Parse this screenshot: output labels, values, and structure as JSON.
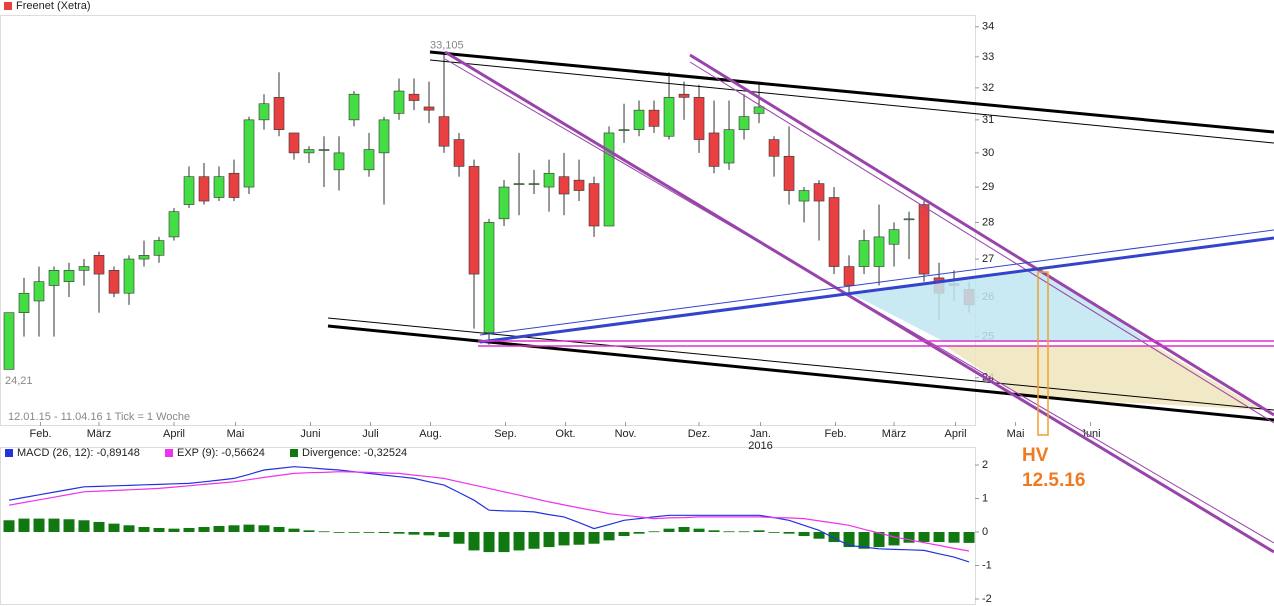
{
  "chart_data": [
    {
      "type": "candlestick",
      "legend": "Freenet (Xetra)",
      "legend_color": "#e84040",
      "subtitle": "12.01.15 - 11.04.16   1 Tick = 1 Woche",
      "max_label": "33,105",
      "min_label": "24,21",
      "year_label": "2016",
      "annotations": [
        "HV",
        "12.5.16"
      ],
      "up_color": "#44dd44",
      "down_color": "#e84040",
      "log": true,
      "ylim": [
        22.9,
        34.4
      ],
      "yticks": [
        24,
        25,
        26,
        27,
        28,
        29,
        30,
        31,
        32,
        33,
        34
      ],
      "xlim": [
        -0.6,
        84.33
      ],
      "xticks": [
        {
          "value": 2.1,
          "label": "Feb."
        },
        {
          "value": 6.0,
          "label": "März"
        },
        {
          "value": 11.0,
          "label": "April"
        },
        {
          "value": 15.1,
          "label": "Mai"
        },
        {
          "value": 20.1,
          "label": "Juni"
        },
        {
          "value": 24.1,
          "label": "Juli"
        },
        {
          "value": 28.1,
          "label": "Aug."
        },
        {
          "value": 33.1,
          "label": "Sep."
        },
        {
          "value": 37.1,
          "label": "Okt."
        },
        {
          "value": 41.1,
          "label": "Nov."
        },
        {
          "value": 46.0,
          "label": "Dez."
        },
        {
          "value": 50.1,
          "label": "Jan."
        },
        {
          "value": 55.1,
          "label": "Feb."
        },
        {
          "value": 59.0,
          "label": "März"
        },
        {
          "value": 63.1,
          "label": "April"
        },
        {
          "value": 67.1,
          "label": "Mai"
        },
        {
          "value": 72.1,
          "label": "Juni"
        }
      ],
      "open": [
        24.2,
        25.6,
        25.9,
        26.3,
        26.4,
        26.7,
        27.1,
        26.7,
        26.1,
        27.0,
        27.1,
        27.6,
        28.5,
        29.3,
        28.7,
        29.4,
        29.0,
        31.0,
        31.7,
        30.6,
        30.0,
        30.1,
        29.5,
        31.0,
        29.5,
        30.0,
        31.2,
        31.8,
        31.4,
        31.1,
        30.4,
        29.6,
        25.1,
        28.1,
        29.1,
        29.1,
        29.0,
        29.3,
        29.2,
        29.1,
        27.9,
        30.7,
        30.7,
        31.3,
        30.5,
        31.8,
        31.7,
        30.6,
        29.7,
        30.7,
        31.2,
        30.4,
        29.9,
        28.6,
        29.1,
        28.7,
        26.8,
        26.8,
        26.8,
        27.4,
        28.1,
        28.5,
        26.5,
        26.35,
        26.2
      ],
      "high": [
        25.6,
        26.5,
        26.8,
        26.8,
        26.9,
        27.0,
        27.2,
        26.8,
        27.1,
        27.5,
        27.6,
        28.4,
        29.6,
        29.7,
        29.6,
        29.8,
        31.1,
        31.8,
        32.5,
        30.6,
        30.2,
        30.5,
        30.5,
        31.9,
        30.6,
        31.1,
        32.3,
        32.3,
        32.2,
        33.105,
        30.6,
        29.8,
        28.1,
        29.2,
        30.0,
        29.5,
        29.8,
        30.0,
        29.8,
        29.3,
        30.8,
        31.5,
        31.6,
        31.6,
        32.5,
        32.2,
        32.1,
        31.6,
        31.6,
        31.8,
        32.2,
        30.5,
        30.8,
        29.0,
        29.2,
        29.0,
        27.1,
        27.8,
        28.5,
        28.0,
        28.3,
        28.6,
        26.9,
        26.7,
        26.4
      ],
      "low": [
        24.21,
        25.0,
        25.0,
        25.0,
        26.0,
        26.3,
        25.6,
        26.0,
        25.8,
        26.8,
        26.9,
        27.5,
        28.4,
        28.5,
        28.6,
        28.6,
        28.8,
        30.7,
        30.5,
        29.8,
        29.7,
        29.0,
        28.9,
        30.8,
        29.3,
        28.5,
        31.0,
        31.3,
        30.9,
        30.0,
        29.3,
        25.2,
        24.8,
        27.9,
        28.2,
        28.8,
        28.3,
        28.2,
        28.6,
        27.6,
        27.9,
        30.3,
        30.5,
        30.6,
        30.4,
        31.0,
        30.0,
        29.4,
        29.5,
        30.4,
        30.9,
        29.3,
        28.5,
        28.0,
        27.5,
        26.6,
        26.1,
        26.6,
        26.3,
        26.8,
        27.0,
        26.4,
        25.4,
        25.9,
        25.6
      ],
      "close": [
        25.6,
        26.1,
        26.4,
        26.7,
        26.7,
        26.8,
        26.6,
        26.1,
        27.0,
        27.1,
        27.5,
        28.3,
        29.3,
        28.6,
        29.3,
        28.7,
        31.0,
        31.5,
        30.7,
        30.0,
        30.1,
        30.1,
        30.0,
        31.8,
        30.1,
        31.0,
        31.9,
        31.6,
        31.3,
        30.2,
        29.6,
        26.6,
        28.0,
        29.0,
        29.1,
        29.1,
        29.4,
        28.8,
        28.9,
        27.9,
        30.6,
        30.7,
        31.3,
        30.8,
        31.7,
        31.7,
        30.4,
        29.6,
        30.7,
        31.1,
        31.4,
        29.9,
        28.9,
        28.9,
        28.6,
        26.8,
        26.3,
        27.5,
        27.6,
        27.8,
        28.1,
        26.6,
        26.1,
        26.3,
        25.8
      ]
    },
    {
      "type": "macd",
      "ylim": [
        -2,
        2
      ],
      "yticks": [
        -2,
        -1,
        0,
        1,
        2
      ],
      "xlim": [
        -0.6,
        84.33
      ],
      "series": [
        {
          "name": "MACD (26, 12): -0,89148",
          "color": "#2233dd",
          "style": "line",
          "values": [
            0.95,
            1.03,
            1.11,
            1.19,
            1.27,
            1.35,
            1.36,
            1.38,
            1.39,
            1.41,
            1.42,
            1.44,
            1.45,
            1.5,
            1.55,
            1.6,
            1.72,
            1.85,
            1.9,
            1.95,
            1.92,
            1.88,
            1.85,
            1.8,
            1.75,
            1.7,
            1.65,
            1.6,
            1.5,
            1.4,
            1.18,
            0.95,
            0.65,
            0.63,
            0.62,
            0.6,
            0.52,
            0.45,
            0.28,
            0.1,
            0.22,
            0.35,
            0.4,
            0.45,
            0.5,
            0.5,
            0.5,
            0.5,
            0.5,
            0.5,
            0.5,
            0.43,
            0.35,
            0.2,
            0.05,
            -0.18,
            -0.4,
            -0.45,
            -0.5,
            -0.52,
            -0.53,
            -0.55,
            -0.65,
            -0.75,
            -0.89148
          ]
        },
        {
          "name": "EXP (9): -0,56624",
          "color": "#ee33ee",
          "style": "line",
          "values": [
            0.8,
            0.88,
            0.96,
            1.04,
            1.12,
            1.2,
            1.22,
            1.24,
            1.26,
            1.28,
            1.3,
            1.34,
            1.38,
            1.42,
            1.46,
            1.5,
            1.56,
            1.63,
            1.69,
            1.75,
            1.77,
            1.78,
            1.8,
            1.79,
            1.78,
            1.76,
            1.75,
            1.7,
            1.65,
            1.6,
            1.5,
            1.4,
            1.3,
            1.2,
            1.1,
            1.0,
            0.9,
            0.81,
            0.72,
            0.64,
            0.55,
            0.5,
            0.45,
            0.4,
            0.42,
            0.43,
            0.45,
            0.45,
            0.45,
            0.45,
            0.45,
            0.43,
            0.42,
            0.4,
            0.33,
            0.27,
            0.2,
            0.08,
            -0.03,
            -0.15,
            -0.23,
            -0.32,
            -0.4,
            -0.49,
            -0.56624
          ]
        },
        {
          "name": "Divergence: -0,32524",
          "color": "#117711",
          "style": "bar",
          "values": [
            0.35,
            0.4,
            0.4,
            0.4,
            0.38,
            0.35,
            0.3,
            0.25,
            0.2,
            0.15,
            0.12,
            0.1,
            0.12,
            0.15,
            0.18,
            0.2,
            0.22,
            0.2,
            0.15,
            0.1,
            0.05,
            0.02,
            0.0,
            0.0,
            -0.02,
            -0.03,
            -0.05,
            -0.08,
            -0.1,
            -0.15,
            -0.35,
            -0.55,
            -0.6,
            -0.6,
            -0.55,
            -0.5,
            -0.45,
            -0.4,
            -0.38,
            -0.35,
            -0.25,
            -0.12,
            -0.05,
            0.02,
            0.1,
            0.15,
            0.1,
            0.05,
            0.02,
            0.02,
            0.05,
            0.0,
            -0.05,
            -0.12,
            -0.2,
            -0.3,
            -0.45,
            -0.5,
            -0.45,
            -0.4,
            -0.32,
            -0.3,
            -0.3,
            -0.32,
            -0.32524
          ]
        }
      ]
    }
  ]
}
